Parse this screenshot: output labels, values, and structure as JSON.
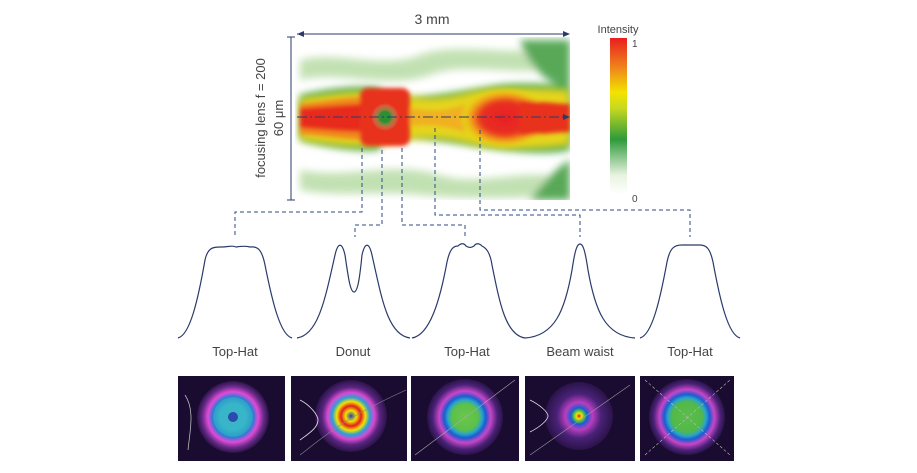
{
  "top_map": {
    "width_label": "3 mm",
    "lens_label": "focusing lens f = 200",
    "height_label": "60 μm"
  },
  "colorbar": {
    "title": "Intensity",
    "max_label": "1",
    "min_label": "0",
    "colors": [
      "#ffffff",
      "#2e9a3a",
      "#f2e400",
      "#f08a1a",
      "#e81f1f"
    ]
  },
  "profiles": [
    {
      "label": "Top-Hat",
      "shape": "tophat"
    },
    {
      "label": "Donut",
      "shape": "donut"
    },
    {
      "label": "Top-Hat",
      "shape": "tophat-dip"
    },
    {
      "label": "Beam waist",
      "shape": "gaussian"
    },
    {
      "label": "Top-Hat",
      "shape": "tophat-flat"
    }
  ],
  "camera_images": [
    {
      "pattern": "ring-blue-dotted"
    },
    {
      "pattern": "rings-red-yellow"
    },
    {
      "pattern": "green-disc"
    },
    {
      "pattern": "small-rings"
    },
    {
      "pattern": "green-disc-large"
    }
  ],
  "colors": {
    "line": "#2b3a6b",
    "dashed": "#2e4a8a",
    "text": "#444444"
  }
}
